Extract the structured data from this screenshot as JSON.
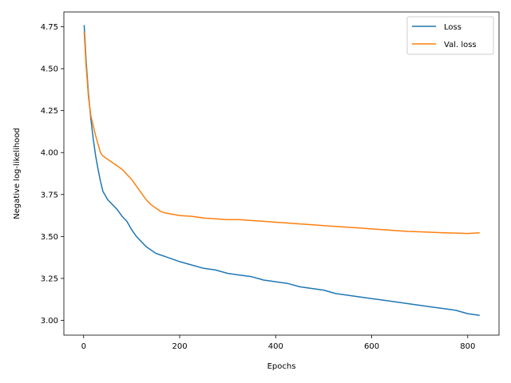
{
  "chart_data": {
    "type": "line",
    "title": "",
    "xlabel": "Epochs",
    "ylabel": "Negative log-likelihood",
    "xlim": [
      -41.2,
      865.2
    ],
    "ylim": [
      2.912,
      4.838
    ],
    "xticks": [
      0,
      200,
      400,
      600,
      800
    ],
    "yticks": [
      3.0,
      3.25,
      3.5,
      3.75,
      4.0,
      4.25,
      4.5,
      4.75
    ],
    "xtick_labels": [
      "0",
      "200",
      "400",
      "600",
      "800"
    ],
    "ytick_labels": [
      "3.00",
      "3.25",
      "3.50",
      "3.75",
      "4.00",
      "4.25",
      "4.50",
      "4.75"
    ],
    "grid": false,
    "legend_position": "top-right",
    "series": [
      {
        "name": "Loss",
        "color": "#1f77b4",
        "x": [
          1,
          5,
          10,
          15,
          20,
          25,
          30,
          35,
          40,
          50,
          60,
          70,
          80,
          90,
          100,
          110,
          120,
          130,
          140,
          150,
          160,
          170,
          180,
          190,
          200,
          225,
          250,
          275,
          300,
          325,
          350,
          375,
          400,
          425,
          450,
          475,
          500,
          525,
          550,
          575,
          600,
          625,
          650,
          675,
          700,
          725,
          750,
          775,
          800,
          825
        ],
        "values": [
          4.76,
          4.55,
          4.35,
          4.2,
          4.08,
          3.98,
          3.9,
          3.83,
          3.77,
          3.72,
          3.69,
          3.66,
          3.62,
          3.59,
          3.54,
          3.5,
          3.47,
          3.44,
          3.42,
          3.4,
          3.39,
          3.38,
          3.37,
          3.36,
          3.35,
          3.33,
          3.31,
          3.3,
          3.28,
          3.27,
          3.26,
          3.24,
          3.23,
          3.22,
          3.2,
          3.19,
          3.18,
          3.16,
          3.15,
          3.14,
          3.13,
          3.12,
          3.11,
          3.1,
          3.09,
          3.08,
          3.07,
          3.06,
          3.04,
          3.03
        ]
      },
      {
        "name": "Val. loss",
        "color": "#ff7f0e",
        "x": [
          1,
          5,
          10,
          15,
          20,
          25,
          30,
          35,
          40,
          50,
          60,
          70,
          80,
          90,
          100,
          110,
          120,
          130,
          140,
          150,
          160,
          170,
          180,
          190,
          200,
          225,
          250,
          275,
          300,
          325,
          350,
          375,
          400,
          425,
          450,
          475,
          500,
          525,
          550,
          575,
          600,
          625,
          650,
          675,
          700,
          725,
          750,
          775,
          800,
          825
        ],
        "values": [
          4.72,
          4.52,
          4.33,
          4.22,
          4.16,
          4.1,
          4.05,
          4.0,
          3.98,
          3.96,
          3.94,
          3.92,
          3.9,
          3.87,
          3.84,
          3.8,
          3.76,
          3.72,
          3.69,
          3.67,
          3.65,
          3.64,
          3.635,
          3.63,
          3.625,
          3.62,
          3.61,
          3.605,
          3.6,
          3.6,
          3.595,
          3.59,
          3.585,
          3.58,
          3.575,
          3.57,
          3.565,
          3.56,
          3.555,
          3.55,
          3.545,
          3.54,
          3.535,
          3.53,
          3.528,
          3.525,
          3.522,
          3.52,
          3.518,
          3.522
        ]
      }
    ]
  }
}
